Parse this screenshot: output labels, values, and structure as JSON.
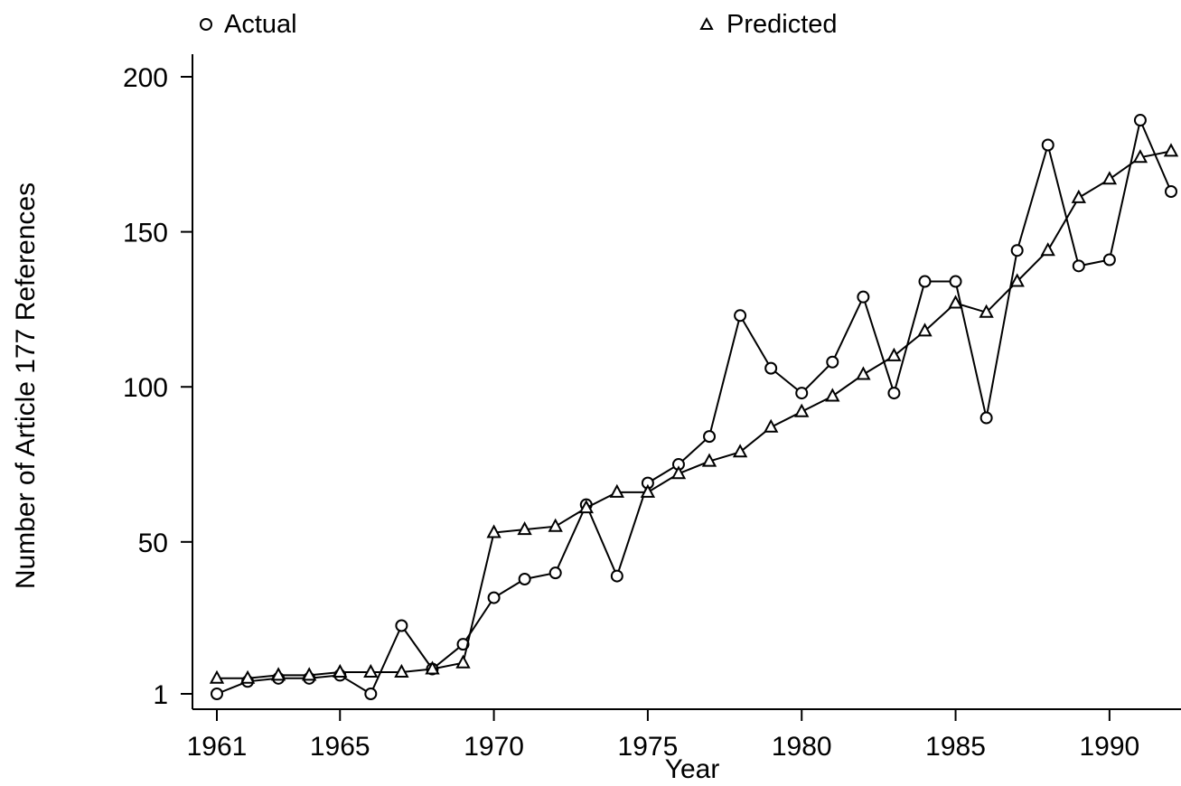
{
  "chart_data": {
    "type": "line",
    "xlabel": "Year",
    "ylabel": "Number of Article 177 References",
    "xlim": [
      1961,
      1992
    ],
    "ylim": [
      1,
      200
    ],
    "x_ticks": [
      1961,
      1965,
      1970,
      1975,
      1980,
      1985,
      1990
    ],
    "y_ticks": [
      1,
      50,
      100,
      150,
      200
    ],
    "grid": false,
    "legend_position": "top",
    "x": [
      1961,
      1962,
      1963,
      1964,
      1965,
      1966,
      1967,
      1968,
      1969,
      1970,
      1971,
      1972,
      1973,
      1974,
      1975,
      1976,
      1977,
      1978,
      1979,
      1980,
      1981,
      1982,
      1983,
      1984,
      1985,
      1986,
      1987,
      1988,
      1989,
      1990,
      1991,
      1992
    ],
    "series": [
      {
        "name": "Actual",
        "marker": "circle",
        "values": [
          1,
          5,
          6,
          6,
          7,
          1,
          23,
          9,
          17,
          32,
          38,
          40,
          62,
          39,
          69,
          75,
          84,
          123,
          106,
          98,
          108,
          129,
          98,
          134,
          134,
          90,
          144,
          178,
          139,
          141,
          186,
          163
        ]
      },
      {
        "name": "Predicted",
        "marker": "triangle",
        "values": [
          6,
          6,
          7,
          7,
          8,
          8,
          8,
          9,
          11,
          53,
          54,
          55,
          61,
          66,
          66,
          72,
          76,
          79,
          87,
          92,
          97,
          104,
          110,
          118,
          127,
          124,
          134,
          144,
          161,
          167,
          174,
          176
        ]
      }
    ]
  }
}
